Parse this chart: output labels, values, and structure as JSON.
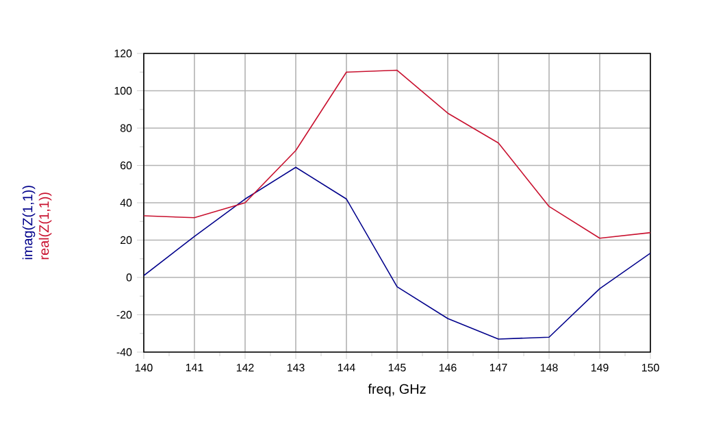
{
  "chart_data": {
    "type": "line",
    "xlabel": "freq, GHz",
    "x": [
      140,
      141,
      142,
      143,
      144,
      145,
      146,
      147,
      148,
      149,
      150
    ],
    "series": [
      {
        "name": "imag(Z(1,1))",
        "color": "#00008b",
        "values": [
          1,
          22,
          42,
          59,
          42,
          -5,
          -22,
          -33,
          -32,
          -6,
          13
        ]
      },
      {
        "name": "real(Z(1,1))",
        "color": "#c8102e",
        "values": [
          33,
          32,
          40,
          68,
          110,
          111,
          88,
          72,
          38,
          21,
          24
        ]
      }
    ],
    "xlim": [
      140,
      150
    ],
    "xticks": [
      140,
      141,
      142,
      143,
      144,
      145,
      146,
      147,
      148,
      149,
      150
    ],
    "ylim": [
      -40,
      120
    ],
    "yticks": [
      -40,
      -20,
      0,
      20,
      40,
      60,
      80,
      100,
      120
    ],
    "grid": true,
    "legend": "left",
    "marker": "none",
    "line_style": "solid"
  }
}
